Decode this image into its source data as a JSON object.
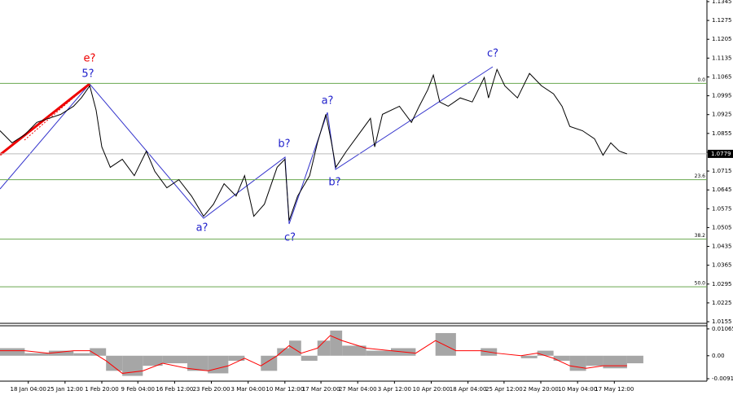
{
  "chart_data": [
    {
      "type": "line",
      "color": "#000000",
      "x": [
        0,
        1.7,
        3.5,
        5.2,
        6.9,
        8.6,
        10.4,
        11.5,
        12.7,
        13.6,
        14.4,
        15.6,
        17.3,
        19.0,
        20.7,
        21.9,
        23.6,
        25.3,
        27.1,
        28.8,
        30.2,
        31.7,
        33.4,
        34.6,
        35.9,
        37.4,
        39.2,
        40.3,
        40.9,
        42.1,
        43.8,
        44.9,
        46.1,
        46.9,
        47.5,
        49.0,
        50.7,
        52.4,
        53.0,
        54.1,
        56.5,
        58.2,
        59.3,
        60.5,
        61.3,
        62.2,
        63.4,
        65.1,
        66.8,
        68.5,
        69.1,
        70.3,
        71.4,
        73.2,
        74.9,
        76.6,
        78.3,
        79.5,
        80.6,
        82.4,
        84.1,
        85.3,
        86.4,
        87.6,
        88.7
      ],
      "values": [
        1.0865,
        1.082,
        1.085,
        1.0896,
        1.0911,
        1.0926,
        1.0956,
        1.0987,
        1.1032,
        1.0941,
        1.0805,
        1.0729,
        1.0759,
        1.0698,
        1.0789,
        1.0714,
        1.0653,
        1.0683,
        1.0622,
        1.0547,
        1.0592,
        1.0668,
        1.0622,
        1.0698,
        1.0547,
        1.0592,
        1.0729,
        1.0759,
        1.0531,
        1.0622,
        1.0698,
        1.082,
        1.0926,
        1.082,
        1.0729,
        1.0789,
        1.085,
        1.0911,
        1.0805,
        1.0926,
        1.0956,
        1.0896,
        1.0956,
        1.1017,
        1.1072,
        1.0972,
        1.0956,
        1.0987,
        1.0972,
        1.1063,
        1.0987,
        1.1093,
        1.1032,
        1.0987,
        1.1078,
        1.1032,
        1.1002,
        1.0956,
        1.0881,
        1.0865,
        1.0835,
        1.0774,
        1.082,
        1.0789,
        1.0779
      ],
      "xlim": [
        0,
        100
      ],
      "ylim": [
        1.0149,
        1.1351
      ],
      "yticks": [
        1.0155,
        1.0225,
        1.0295,
        1.0365,
        1.0435,
        1.0505,
        1.0575,
        1.0645,
        1.0715,
        1.0785,
        1.0855,
        1.0925,
        1.0995,
        1.1065,
        1.1135,
        1.1205,
        1.1275,
        1.1345
      ],
      "xticks": [
        {
          "value": 4.0,
          "label": "18 Jan 04:00"
        },
        {
          "value": 9.2,
          "label": "25 Jan 12:00"
        },
        {
          "value": 14.4,
          "label": "1 Feb 20:00"
        },
        {
          "value": 19.5,
          "label": "9 Feb 04:00"
        },
        {
          "value": 24.7,
          "label": "16 Feb 12:00"
        },
        {
          "value": 29.9,
          "label": "23 Feb 20:00"
        },
        {
          "value": 35.1,
          "label": "3 Mar 04:00"
        },
        {
          "value": 40.3,
          "label": "10 Mar 12:00"
        },
        {
          "value": 45.4,
          "label": "17 Mar 20:00"
        },
        {
          "value": 50.6,
          "label": "27 Mar 04:00"
        },
        {
          "value": 55.8,
          "label": "3 Apr 12:00"
        },
        {
          "value": 61.0,
          "label": "10 Apr 20:00"
        },
        {
          "value": 66.2,
          "label": "18 Apr 04:00"
        },
        {
          "value": 71.3,
          "label": "25 Apr 12:00"
        },
        {
          "value": 76.5,
          "label": "2 May 20:00"
        },
        {
          "value": 81.7,
          "label": "10 May 04:00"
        },
        {
          "value": 86.9,
          "label": "17 May 12:00"
        }
      ],
      "levels": [
        {
          "label": "0.0",
          "value": 1.1041
        },
        {
          "label": "23.6",
          "value": 1.0683
        },
        {
          "label": "38.2",
          "value": 1.0462
        },
        {
          "label": "50.0",
          "value": 1.0285
        }
      ],
      "level_color": "#6aa84f",
      "last_price": {
        "value": 1.0779,
        "label": "1.0779"
      },
      "annotations": [
        "e?",
        "5?",
        "b?",
        "a?",
        "b?",
        "a?",
        "c?",
        "c?"
      ]
    },
    {
      "type": "bar",
      "xlim": [
        0,
        100
      ],
      "ylim": [
        -0.0101,
        0.0119
      ],
      "yticks": [
        -0.00913,
        {
          "value": 0,
          "label": "0.00"
        },
        0.01065
      ],
      "x": [
        0,
        3.5,
        6.9,
        10.4,
        12.7,
        15.0,
        17.3,
        20.2,
        23.0,
        26.5,
        29.4,
        32.3,
        34.6,
        36.9,
        39.2,
        40.9,
        42.6,
        44.9,
        46.7,
        48.4,
        51.8,
        55.3,
        58.8,
        61.6,
        64.5,
        68.0,
        70.3,
        73.7,
        76.0,
        78.3,
        80.6,
        82.9,
        85.3,
        88.7
      ],
      "series": [
        {
          "color": "#a6a6a6",
          "values": [
            0.003,
            0.001,
            0.002,
            0.001,
            0.003,
            -0.006,
            -0.008,
            -0.004,
            -0.003,
            -0.006,
            -0.007,
            -0.002,
            0,
            -0.006,
            0.003,
            0.006,
            -0.002,
            0.006,
            0.01,
            0.004,
            0.002,
            0.003,
            0,
            0.009,
            0,
            0.003,
            0,
            -0.001,
            0.002,
            -0.002,
            -0.006,
            -0.004,
            -0.005,
            -0.003
          ]
        },
        {
          "color": "#ff0000",
          "values": [
            0.002,
            0.002,
            0.001,
            0.002,
            0.002,
            -0.002,
            -0.007,
            -0.006,
            -0.003,
            -0.005,
            -0.006,
            -0.004,
            -0.001,
            -0.004,
            0,
            0.004,
            0.001,
            0.003,
            0.008,
            0.006,
            0.003,
            0.002,
            0.001,
            0.006,
            0.002,
            0.002,
            0.001,
            0,
            0.001,
            -0.001,
            -0.004,
            -0.005,
            -0.004,
            -0.004
          ]
        }
      ]
    }
  ]
}
